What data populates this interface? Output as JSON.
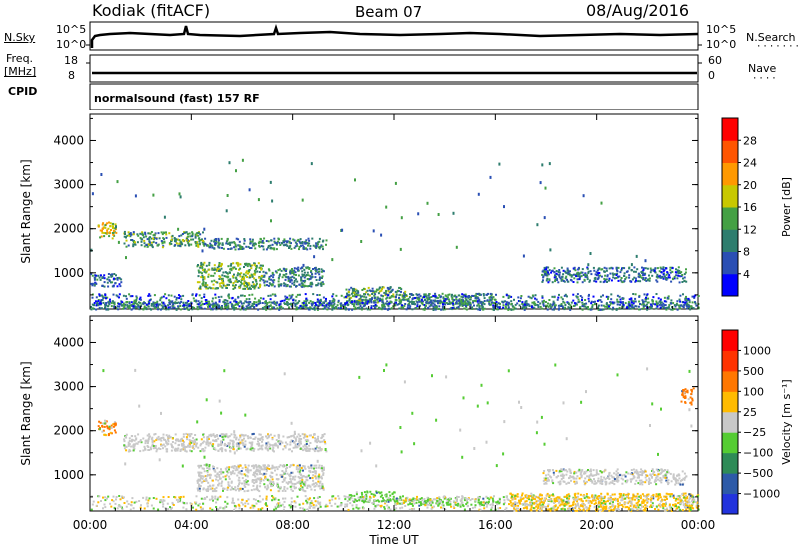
{
  "header": {
    "station": "Kodiak (fitACF)",
    "beam": "Beam 07",
    "date": "08/Aug/2016"
  },
  "top_panels": {
    "nsky_label": "N.Sky",
    "nsky_ticks": [
      "10^5",
      "10^0"
    ],
    "nsearch_label": "N.Search",
    "nsearch_ticks": [
      "10^5",
      "10^0"
    ],
    "freq_label_1": "Freq.",
    "freq_label_2": "[MHz]",
    "freq_ticks": [
      "18",
      "8"
    ],
    "nave_label": "Nave",
    "nave_ticks": [
      "60",
      "0"
    ],
    "cpid_label": "CPID",
    "cpid_text": "normalsound (fast) 157 RF"
  },
  "chart_data": [
    {
      "type": "heatmap",
      "panel": "power",
      "ylabel": "Slant Range [km]",
      "yticks": [
        "1000",
        "2000",
        "3000",
        "4000"
      ],
      "ylim": [
        180,
        4600
      ],
      "colorbar_label": "Power [dB]",
      "colorbar_ticks": [
        "4",
        "8",
        "12",
        "16",
        "20",
        "24",
        "28"
      ],
      "colorbar_colors": [
        "#0000ff",
        "#2a4fb4",
        "#2e7d6e",
        "#44a044",
        "#c8c800",
        "#ff9900",
        "#ff5500",
        "#ff0000"
      ],
      "regions": [
        {
          "t0": 0.3,
          "t1": 1.0,
          "r0": 1800,
          "r1": 2200,
          "level": 18
        },
        {
          "t0": 1.3,
          "t1": 4.5,
          "r0": 1600,
          "r1": 1950,
          "level": 12
        },
        {
          "t0": 4.5,
          "t1": 9.3,
          "r0": 1550,
          "r1": 1800,
          "level": 10
        },
        {
          "t0": 0.0,
          "t1": 1.2,
          "r0": 700,
          "r1": 1000,
          "level": 8
        },
        {
          "t0": 4.2,
          "t1": 6.8,
          "r0": 650,
          "r1": 1250,
          "level": 14
        },
        {
          "t0": 6.8,
          "t1": 9.2,
          "r0": 700,
          "r1": 1150,
          "level": 10
        },
        {
          "t0": 10.0,
          "t1": 12.5,
          "r0": 350,
          "r1": 700,
          "level": 12
        },
        {
          "t0": 12.5,
          "t1": 16.0,
          "r0": 300,
          "r1": 550,
          "level": 10
        },
        {
          "t0": 17.8,
          "t1": 23.5,
          "r0": 800,
          "r1": 1150,
          "level": 8
        },
        {
          "t0": 0.0,
          "t1": 24.0,
          "r0": 180,
          "r1": 380,
          "level": 10
        }
      ]
    },
    {
      "type": "heatmap",
      "panel": "velocity",
      "ylabel": "Slant Range [km]",
      "yticks": [
        "1000",
        "2000",
        "3000",
        "4000"
      ],
      "ylim": [
        180,
        4600
      ],
      "xlabel": "Time UT",
      "xticks": [
        "00:00",
        "04:00",
        "08:00",
        "12:00",
        "16:00",
        "20:00",
        "00:00"
      ],
      "xlim": [
        0,
        24
      ],
      "colorbar_label": "Velocity [m s⁻¹]",
      "colorbar_ticks": [
        "1000",
        "500",
        "100",
        "25",
        "−25",
        "−100",
        "−500",
        "−1000"
      ],
      "colorbar_colors": [
        "#2233dd",
        "#2d5aa8",
        "#2e8b57",
        "#55cc33",
        "#c8c8c8",
        "#ffbb00",
        "#ff7700",
        "#ff3300",
        "#ff0000"
      ],
      "regions": [
        {
          "t0": 0.3,
          "t1": 1.0,
          "r0": 1900,
          "r1": 2250,
          "color": "#ff7700"
        },
        {
          "t0": 1.3,
          "t1": 9.3,
          "r0": 1550,
          "r1": 1950,
          "color": "#c8c8c8"
        },
        {
          "t0": 4.2,
          "t1": 9.2,
          "r0": 650,
          "r1": 1250,
          "color": "#c8c8c8"
        },
        {
          "t0": 10.2,
          "t1": 12.0,
          "r0": 400,
          "r1": 650,
          "color": "#55cc33"
        },
        {
          "t0": 12.0,
          "t1": 16.2,
          "r0": 320,
          "r1": 500,
          "color": "#55cc33"
        },
        {
          "t0": 17.8,
          "t1": 23.5,
          "r0": 800,
          "r1": 1150,
          "color": "#c8c8c8"
        },
        {
          "t0": 16.5,
          "t1": 24.0,
          "r0": 200,
          "r1": 600,
          "color": "#ffbb00"
        },
        {
          "t0": 23.3,
          "t1": 23.8,
          "r0": 2600,
          "r1": 3000,
          "color": "#ff7700"
        }
      ]
    }
  ]
}
